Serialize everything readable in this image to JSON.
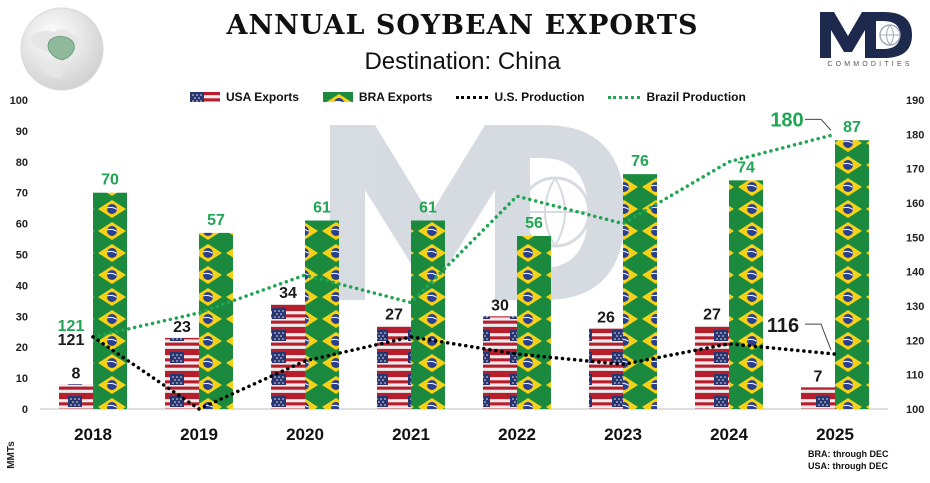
{
  "header": {
    "title": "ANNUAL SOYBEAN EXPORTS",
    "subtitle": "Destination: China"
  },
  "logo": {
    "letters": "MD",
    "tagline": "COMMODITIES"
  },
  "notes": [
    "BRA: through DEC",
    "USA: through DEC"
  ],
  "legend": [
    {
      "label": "USA Exports",
      "kind": "usa"
    },
    {
      "label": "BRA Exports",
      "kind": "bra"
    },
    {
      "label": "U.S. Production",
      "kind": "us-line"
    },
    {
      "label": "Brazil Production",
      "kind": "br-line"
    }
  ],
  "colors": {
    "brazil_green": "#1fa553",
    "us_dotted": "#000000",
    "label_dark": "#1a1a1a",
    "flag_green": "#1c8a3e",
    "flag_yellow": "#f7d117",
    "flag_blue": "#2b3f8f",
    "us_red": "#c8202f"
  },
  "chart_data": {
    "type": "bar",
    "title": "ANNUAL SOYBEAN EXPORTS",
    "subtitle": "Destination: China",
    "categories": [
      "2018",
      "2019",
      "2020",
      "2021",
      "2022",
      "2023",
      "2024",
      "2025"
    ],
    "series": [
      {
        "name": "USA Exports",
        "type": "bar",
        "axis": "left",
        "values": [
          8,
          23,
          34,
          27,
          30,
          26,
          27,
          7
        ]
      },
      {
        "name": "BRA Exports",
        "type": "bar",
        "axis": "left",
        "values": [
          70,
          57,
          61,
          61,
          56,
          76,
          74,
          87
        ]
      },
      {
        "name": "U.S. Production",
        "type": "line",
        "axis": "right",
        "values": [
          121,
          100,
          114,
          121,
          116,
          113,
          119,
          116
        ]
      },
      {
        "name": "Brazil Production",
        "type": "line",
        "axis": "right",
        "values": [
          121,
          128,
          139,
          131,
          162,
          154,
          172,
          180
        ]
      }
    ],
    "line_labels": [
      {
        "series": "U.S. Production",
        "category": "2018",
        "text": "121"
      },
      {
        "series": "U.S. Production",
        "category": "2025",
        "text": "116"
      },
      {
        "series": "Brazil Production",
        "category": "2018",
        "text": "121"
      },
      {
        "series": "Brazil Production",
        "category": "2025",
        "text": "180"
      }
    ],
    "y_left": {
      "min": 0,
      "max": 100,
      "step": 10,
      "label": "MMTs"
    },
    "y_right": {
      "min": 100,
      "max": 190,
      "step": 10
    },
    "xlabel": "",
    "ylabel": "MMTs",
    "grid": false,
    "legend_position": "top"
  }
}
